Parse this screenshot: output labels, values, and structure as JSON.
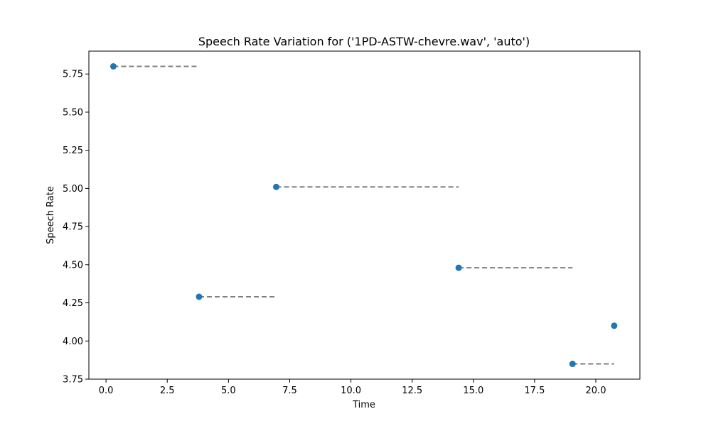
{
  "chart_data": {
    "type": "scatter",
    "title": "Speech Rate Variation for ('1PD-ASTW-chevre.wav', 'auto')",
    "xlabel": "Time",
    "ylabel": "Speech Rate",
    "xlim": [
      -0.7,
      21.8
    ],
    "ylim": [
      3.75,
      5.9
    ],
    "xticks": [
      0.0,
      2.5,
      5.0,
      7.5,
      10.0,
      12.5,
      15.0,
      17.5,
      20.0
    ],
    "xtick_labels": [
      "0.0",
      "2.5",
      "5.0",
      "7.5",
      "10.0",
      "12.5",
      "15.0",
      "17.5",
      "20.0"
    ],
    "yticks": [
      3.75,
      4.0,
      4.25,
      4.5,
      4.75,
      5.0,
      5.25,
      5.5,
      5.75
    ],
    "ytick_labels": [
      "3.75",
      "4.00",
      "4.25",
      "4.50",
      "4.75",
      "5.00",
      "5.25",
      "5.50",
      "5.75"
    ],
    "grid": false,
    "points": [
      {
        "x": 0.3,
        "y": 5.8,
        "x_end": 3.8
      },
      {
        "x": 3.8,
        "y": 4.29,
        "x_end": 6.95
      },
      {
        "x": 6.95,
        "y": 5.01,
        "x_end": 14.4
      },
      {
        "x": 14.4,
        "y": 4.48,
        "x_end": 19.05
      },
      {
        "x": 19.05,
        "y": 3.85,
        "x_end": 20.75
      },
      {
        "x": 20.75,
        "y": 4.1,
        "x_end": null
      }
    ],
    "colors": {
      "point": "#1f77b4",
      "segment": "#808080"
    }
  }
}
